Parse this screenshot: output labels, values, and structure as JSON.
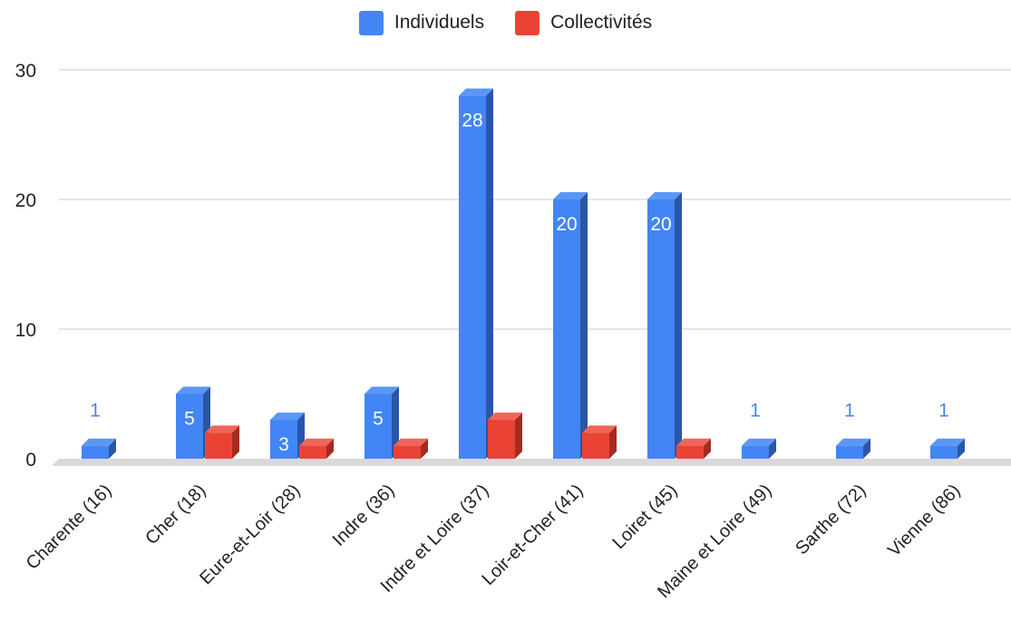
{
  "chart_data": {
    "type": "bar",
    "categories": [
      "Charente (16)",
      "Cher (18)",
      "Eure-et-Loir (28)",
      "Indre (36)",
      "Indre et Loire (37)",
      "Loir-et-Cher (41)",
      "Loiret (45)",
      "Maine et Loire (49)",
      "Sarthe (72)",
      "Vienne (86)"
    ],
    "series": [
      {
        "name": "Individuels",
        "color": "#4285f4",
        "side_color": "#2a56a8",
        "top_color": "#5c97f6",
        "values": [
          1,
          5,
          3,
          5,
          28,
          20,
          20,
          1,
          1,
          1
        ],
        "labels": [
          "1",
          "5",
          "3",
          "5",
          "28",
          "20",
          "20",
          "1",
          "1",
          "1"
        ]
      },
      {
        "name": "Collectivités",
        "color": "#ea4335",
        "side_color": "#a62a20",
        "top_color": "#ef6659",
        "values": [
          0,
          2,
          1,
          1,
          3,
          2,
          1,
          0,
          0,
          0
        ],
        "labels": [
          "",
          "",
          "",
          "",
          "",
          "",
          "",
          "",
          "",
          ""
        ]
      }
    ],
    "yticks": [
      "0",
      "10",
      "20",
      "30"
    ],
    "ylim": [
      0,
      30
    ],
    "grid": true,
    "legend": "top-center",
    "bar_style": "3d"
  }
}
